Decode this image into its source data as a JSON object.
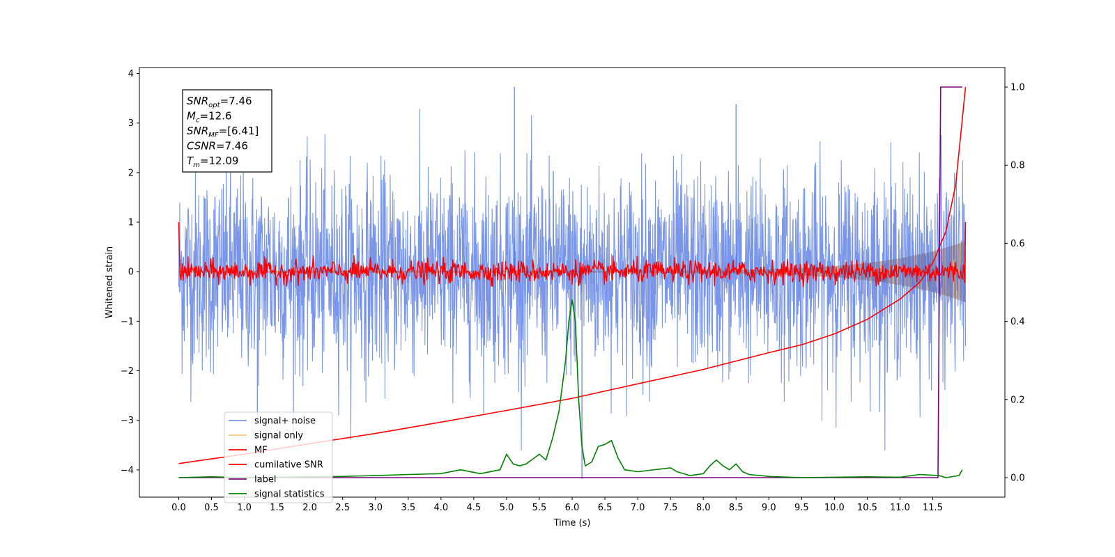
{
  "chart_data": {
    "type": "line",
    "xlabel": "Time (s)",
    "ylabel_left": "Whitened strain",
    "xlim": [
      -0.6,
      12.6
    ],
    "ylim_left": [
      -4.55,
      4.12
    ],
    "ylim_right": [
      -0.05,
      1.05
    ],
    "x_ticks": [
      "0.0",
      "0.5",
      "1.0",
      "1.5",
      "2.0",
      "2.5",
      "3.0",
      "3.5",
      "4.0",
      "4.5",
      "5.0",
      "5.5",
      "6.0",
      "6.5",
      "7.0",
      "7.5",
      "8.0",
      "8.5",
      "9.0",
      "9.5",
      "10.0",
      "10.5",
      "11.0",
      "11.5"
    ],
    "y_ticks_left": [
      "−4",
      "−3",
      "−2",
      "−1",
      "0",
      "1",
      "2",
      "3",
      "4"
    ],
    "y_ticks_right": [
      "0.0",
      "0.2",
      "0.4",
      "0.6",
      "0.8",
      "1.0"
    ],
    "annotation": {
      "snr_opt": "7.46",
      "mc": "12.6",
      "snr_mf": "[6.41]",
      "csnr": "7.46",
      "tm": "12.09"
    },
    "legend_position": "lower-left",
    "series": [
      {
        "name": "signal+ noise",
        "color": "#4169e1",
        "axis": "left",
        "style": "noise",
        "x_range": [
          0,
          12
        ],
        "amplitude_sigma": 1.0,
        "peak_max": 3.73,
        "peak_min": -4.18
      },
      {
        "name": "signal only",
        "color": "#f5b041",
        "axis": "left",
        "style": "chirp",
        "x_range": [
          0,
          12
        ],
        "end_amplitude": 0.6
      },
      {
        "name": "MF",
        "color": "#ff0000",
        "axis": "left",
        "style": "mf",
        "x_range": [
          0,
          12
        ],
        "start_value": 1.0,
        "end_value": 1.0,
        "typical_amplitude": 0.2
      },
      {
        "name": "cumilative SNR",
        "color": "#ff0000",
        "axis": "right",
        "x": [
          0,
          1,
          2,
          3,
          4,
          5,
          6,
          7,
          8,
          9,
          9.5,
          10,
          10.5,
          11,
          11.3,
          11.5,
          11.7,
          11.85,
          12
        ],
        "y": [
          0.036,
          0.06,
          0.087,
          0.113,
          0.142,
          0.172,
          0.203,
          0.24,
          0.277,
          0.32,
          0.34,
          0.368,
          0.405,
          0.457,
          0.5,
          0.55,
          0.63,
          0.75,
          1.0
        ]
      },
      {
        "name": "label",
        "color": "#800080",
        "axis": "right",
        "x": [
          0,
          11.58,
          11.62,
          11.95
        ],
        "y": [
          0,
          0,
          1.0,
          1.0
        ]
      },
      {
        "name": "signal statistics",
        "color": "#008000",
        "axis": "right",
        "x": [
          0,
          0.5,
          1.0,
          1.5,
          2.0,
          2.5,
          3.0,
          3.5,
          4.0,
          4.3,
          4.6,
          4.9,
          5.0,
          5.1,
          5.2,
          5.3,
          5.5,
          5.6,
          5.7,
          5.8,
          5.9,
          5.95,
          6.0,
          6.05,
          6.1,
          6.15,
          6.2,
          6.3,
          6.4,
          6.5,
          6.6,
          6.7,
          6.8,
          7.0,
          7.5,
          7.6,
          7.8,
          8.0,
          8.1,
          8.2,
          8.3,
          8.4,
          8.5,
          8.6,
          8.7,
          9.0,
          9.5,
          10.0,
          10.5,
          11.0,
          11.3,
          11.6,
          11.7,
          11.9,
          11.95
        ],
        "y": [
          0.0,
          0.002,
          0.0,
          0.001,
          0.002,
          0.003,
          0.005,
          0.008,
          0.01,
          0.02,
          0.01,
          0.02,
          0.06,
          0.035,
          0.03,
          0.035,
          0.06,
          0.045,
          0.1,
          0.17,
          0.3,
          0.4,
          0.455,
          0.4,
          0.2,
          0.08,
          0.03,
          0.04,
          0.08,
          0.085,
          0.095,
          0.05,
          0.02,
          0.015,
          0.025,
          0.015,
          0.005,
          0.01,
          0.03,
          0.045,
          0.03,
          0.02,
          0.035,
          0.015,
          0.008,
          0.003,
          0.0,
          0.001,
          0.002,
          0.001,
          0.008,
          0.005,
          0.0,
          0.005,
          0.02
        ]
      }
    ]
  }
}
